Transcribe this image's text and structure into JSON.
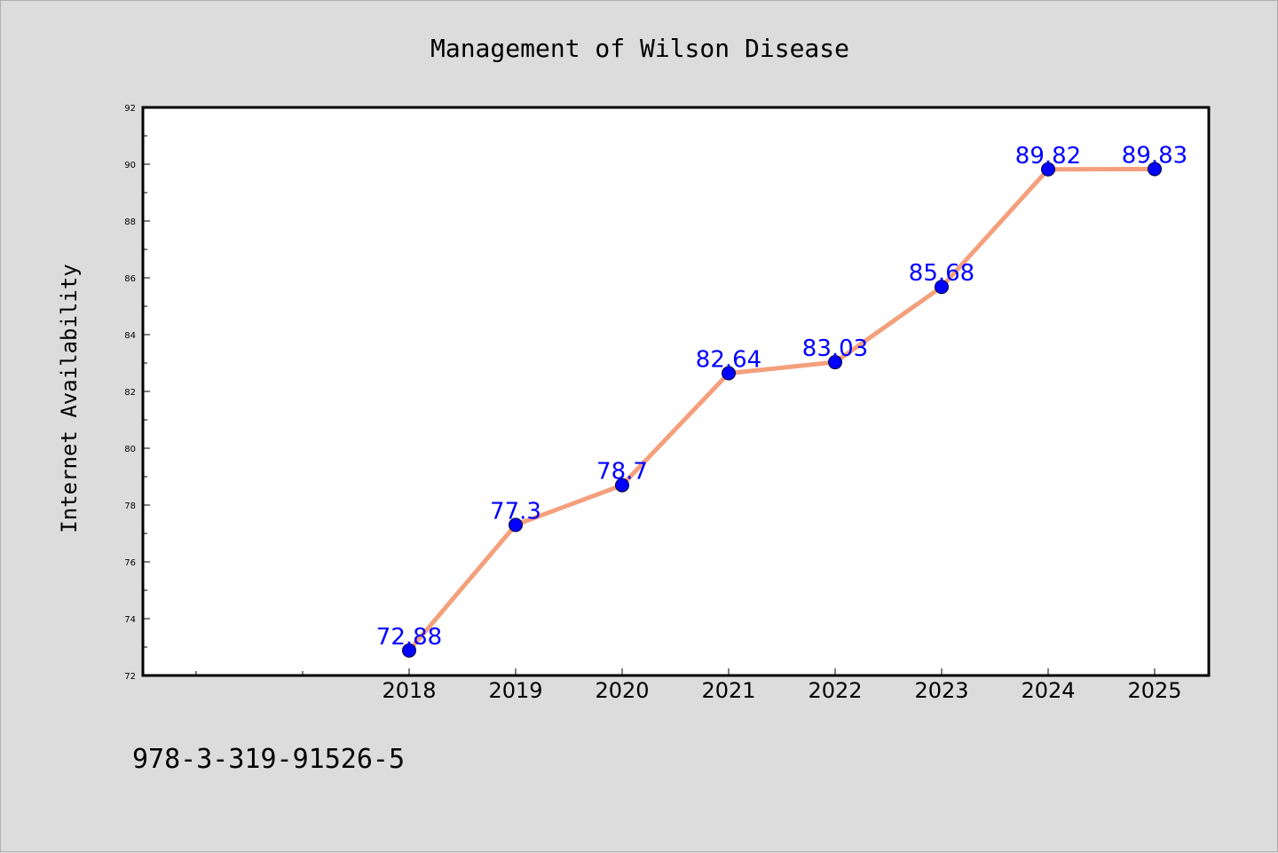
{
  "chart_data": {
    "type": "line",
    "title": "Management of Wilson Disease",
    "xlabel": "",
    "ylabel": "Internet Availability",
    "categories": [
      "2018",
      "2019",
      "2020",
      "2021",
      "2022",
      "2023",
      "2024",
      "2025"
    ],
    "values": [
      72.88,
      77.3,
      78.7,
      82.64,
      83.03,
      85.68,
      89.82,
      89.83
    ],
    "data_labels": [
      "72.88",
      "77.3",
      "78.7",
      "82.64",
      "83.03",
      "85.68",
      "89.82",
      "89.83"
    ],
    "ylim": [
      72,
      92
    ],
    "yticks": [
      72,
      74,
      76,
      78,
      80,
      82,
      84,
      86,
      88,
      90,
      92
    ],
    "grid": false,
    "line_color": "#f4a07c",
    "marker_color": "#0000ff",
    "label_color": "#0000ff"
  },
  "footer": "978-3-319-91526-5"
}
